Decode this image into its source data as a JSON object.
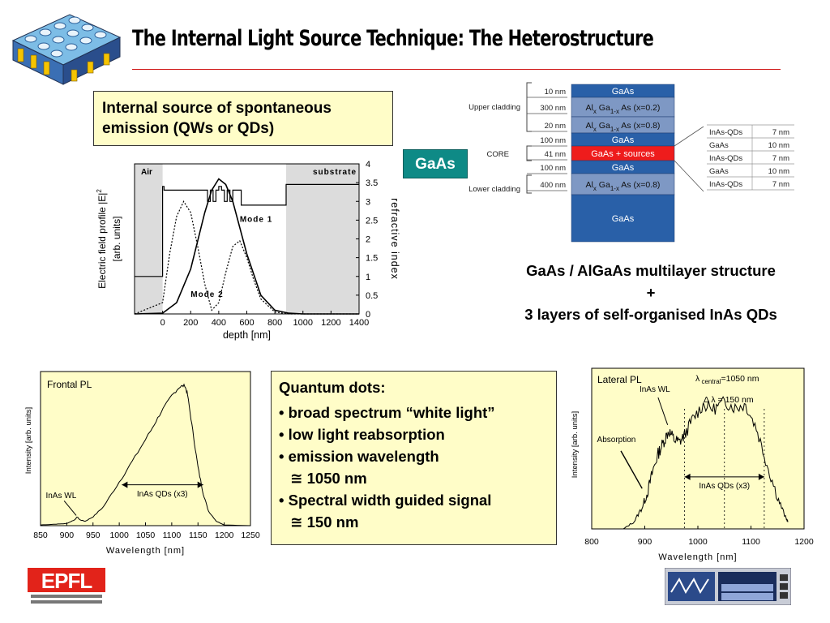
{
  "title": "The Internal Light Source Technique: The Heterostructure",
  "spont_box": {
    "line1": "Internal source of spontaneous",
    "line2": "emission (QWs or QDs)"
  },
  "gaas_badge": "GaAs",
  "structure_caption": {
    "line1": "GaAs / AlGaAs multilayer structure",
    "line2": "+",
    "line3": "3 layers of self-organised InAs QDs"
  },
  "qd_box": {
    "heading": "Quantum dots:",
    "items": [
      "• broad spectrum “white light”",
      "• low light reabsorption",
      "• emission wavelength",
      "≅ 1050 nm",
      "• Spectral width guided signal",
      "≅ 150 nm"
    ]
  },
  "layer_stack": {
    "group_labels": [
      "Upper cladding",
      "CORE",
      "Lower cladding"
    ],
    "thickness_labels": [
      "10 nm",
      "300 nm",
      "20 nm",
      "100 nm",
      "41 nm",
      "100 nm",
      "400 nm"
    ],
    "layers": [
      "GaAs",
      "Al Ga As (x=0.2)",
      "Al Ga As (x=0.8)",
      "GaAs",
      "GaAs + sources",
      "GaAs",
      "Al Ga As (x=0.8)",
      "GaAs"
    ],
    "sub_x": "x",
    "sub_1x": "1-x",
    "colors": {
      "gaas": "#2960a8",
      "algaas": "#7e98c4",
      "core": "#ee1c1c"
    },
    "core_table": [
      [
        "InAs-QDs",
        "7 nm"
      ],
      [
        "GaAs",
        "10 nm"
      ],
      [
        "InAs-QDs",
        "7 nm"
      ],
      [
        "GaAs",
        "10 nm"
      ],
      [
        "InAs-QDs",
        "7 nm"
      ]
    ]
  },
  "chart_data": [
    {
      "type": "line",
      "xlabel": "depth [nm]",
      "ylabel_line1": "Electric field profile |E|",
      "ylabel_sup": "2",
      "ylabel_line2": "[arb. units]",
      "y2label": "refractive index",
      "x_ticks": [
        "0",
        "200",
        "400",
        "600",
        "800",
        "1000",
        "1200",
        "1400"
      ],
      "y2_ticks": [
        "0",
        "0.5",
        "1",
        "1.5",
        "2",
        "2.5",
        "3",
        "3.5",
        "4"
      ],
      "xlim": [
        -200,
        1400
      ],
      "y2lim": [
        0,
        4
      ],
      "region_labels": [
        "Air",
        "substrate"
      ],
      "mode_labels": [
        "Mode 1",
        "Mode 2"
      ],
      "refractive_index": {
        "x": [
          -200,
          0,
          0,
          10,
          10,
          320,
          320,
          340,
          340,
          360,
          360,
          380,
          380,
          400,
          400,
          420,
          420,
          440,
          440,
          460,
          460,
          480,
          480,
          500,
          500,
          520,
          520,
          560,
          560,
          880,
          880,
          1400
        ],
        "y": [
          1,
          1,
          3.4,
          3.4,
          3.3,
          3.3,
          3.0,
          3.0,
          3.3,
          3.3,
          3.0,
          3.0,
          3.3,
          3.3,
          3.4,
          3.4,
          3.3,
          3.3,
          3.0,
          3.0,
          3.3,
          3.3,
          3.0,
          3.0,
          3.3,
          3.3,
          3.3,
          3.3,
          2.9,
          2.9,
          3.45,
          3.45
        ]
      },
      "mode1": {
        "x": [
          -200,
          0,
          100,
          200,
          300,
          350,
          400,
          450,
          500,
          600,
          700,
          800,
          900,
          1000,
          1400
        ],
        "y": [
          0,
          0.02,
          0.3,
          1.2,
          2.7,
          3.3,
          3.6,
          3.45,
          3.0,
          1.6,
          0.5,
          0.1,
          0.02,
          0,
          0
        ]
      },
      "mode2": {
        "x": [
          -200,
          0,
          50,
          100,
          150,
          200,
          250,
          300,
          350,
          400,
          450,
          500,
          550,
          600,
          650,
          700,
          800,
          900,
          1000,
          1400
        ],
        "y": [
          0,
          0.3,
          1.6,
          2.6,
          3.0,
          2.7,
          1.8,
          0.8,
          0.1,
          0.3,
          1.1,
          1.8,
          1.95,
          1.5,
          0.9,
          0.4,
          0.05,
          0,
          0,
          0
        ]
      }
    },
    {
      "type": "line",
      "title": "Frontal PL",
      "xlabel": "Wavelength [nm]",
      "ylabel": "Intensity [arb. units]",
      "x_ticks": [
        "850",
        "900",
        "950",
        "1000",
        "1050",
        "1100",
        "1150",
        "1200",
        "1250"
      ],
      "xlim": [
        850,
        1250
      ],
      "ylim": [
        0,
        1
      ],
      "annotations": [
        "InAs WL",
        "InAs QDs (x3)"
      ],
      "series": {
        "x": [
          850,
          880,
          900,
          915,
          920,
          925,
          935,
          950,
          970,
          1000,
          1030,
          1060,
          1080,
          1100,
          1115,
          1125,
          1130,
          1140,
          1150,
          1160,
          1170,
          1185,
          1200,
          1250
        ],
        "y": [
          0.005,
          0.01,
          0.015,
          0.04,
          0.06,
          0.04,
          0.03,
          0.06,
          0.13,
          0.3,
          0.47,
          0.65,
          0.78,
          0.89,
          0.95,
          0.96,
          0.9,
          0.65,
          0.4,
          0.22,
          0.1,
          0.03,
          0.005,
          0
        ]
      }
    },
    {
      "type": "line",
      "title": "Lateral PL",
      "xlabel": "Wavelength [nm]",
      "ylabel": "Intensity [arb. units]",
      "x_ticks": [
        "800",
        "900",
        "1000",
        "1100",
        "1200"
      ],
      "xlim": [
        800,
        1200
      ],
      "ylim": [
        0,
        1
      ],
      "annotations": [
        "InAs WL",
        "Absorption",
        "InAs QDs (x3)"
      ],
      "lambda_central_sub": "central",
      "lambda_central_value": "=1050 nm",
      "delta_lambda_value": "= 150 nm",
      "series": {
        "x": [
          860,
          880,
          895,
          905,
          915,
          925,
          935,
          945,
          955,
          965,
          975,
          990,
          1010,
          1030,
          1050,
          1070,
          1090,
          1110,
          1130,
          1150,
          1165,
          1170
        ],
        "y": [
          0.0,
          0.05,
          0.15,
          0.25,
          0.4,
          0.52,
          0.6,
          0.68,
          0.62,
          0.6,
          0.65,
          0.76,
          0.86,
          0.83,
          0.88,
          0.84,
          0.86,
          0.7,
          0.45,
          0.22,
          0.08,
          0.05
        ]
      },
      "markers_x": [
        975,
        1050,
        1125
      ]
    }
  ]
}
